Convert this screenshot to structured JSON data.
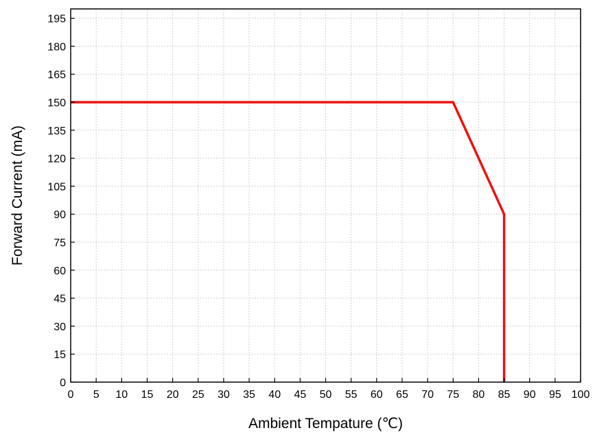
{
  "chart_data": {
    "type": "line",
    "xlabel": "Ambient Tempature (℃)",
    "ylabel": "Forward Current (mA)",
    "xlim": [
      0,
      100
    ],
    "ylim": [
      0,
      200
    ],
    "xticks": [
      0,
      5,
      10,
      15,
      20,
      25,
      30,
      35,
      40,
      45,
      50,
      55,
      60,
      65,
      70,
      75,
      80,
      85,
      90,
      95,
      100
    ],
    "yticks": [
      0,
      15,
      30,
      45,
      60,
      75,
      90,
      105,
      120,
      135,
      150,
      165,
      180,
      195
    ],
    "grid": true,
    "series": [
      {
        "color": "#ee1111",
        "x": [
          0,
          75,
          85,
          85
        ],
        "y": [
          150,
          150,
          90,
          0
        ]
      }
    ]
  }
}
